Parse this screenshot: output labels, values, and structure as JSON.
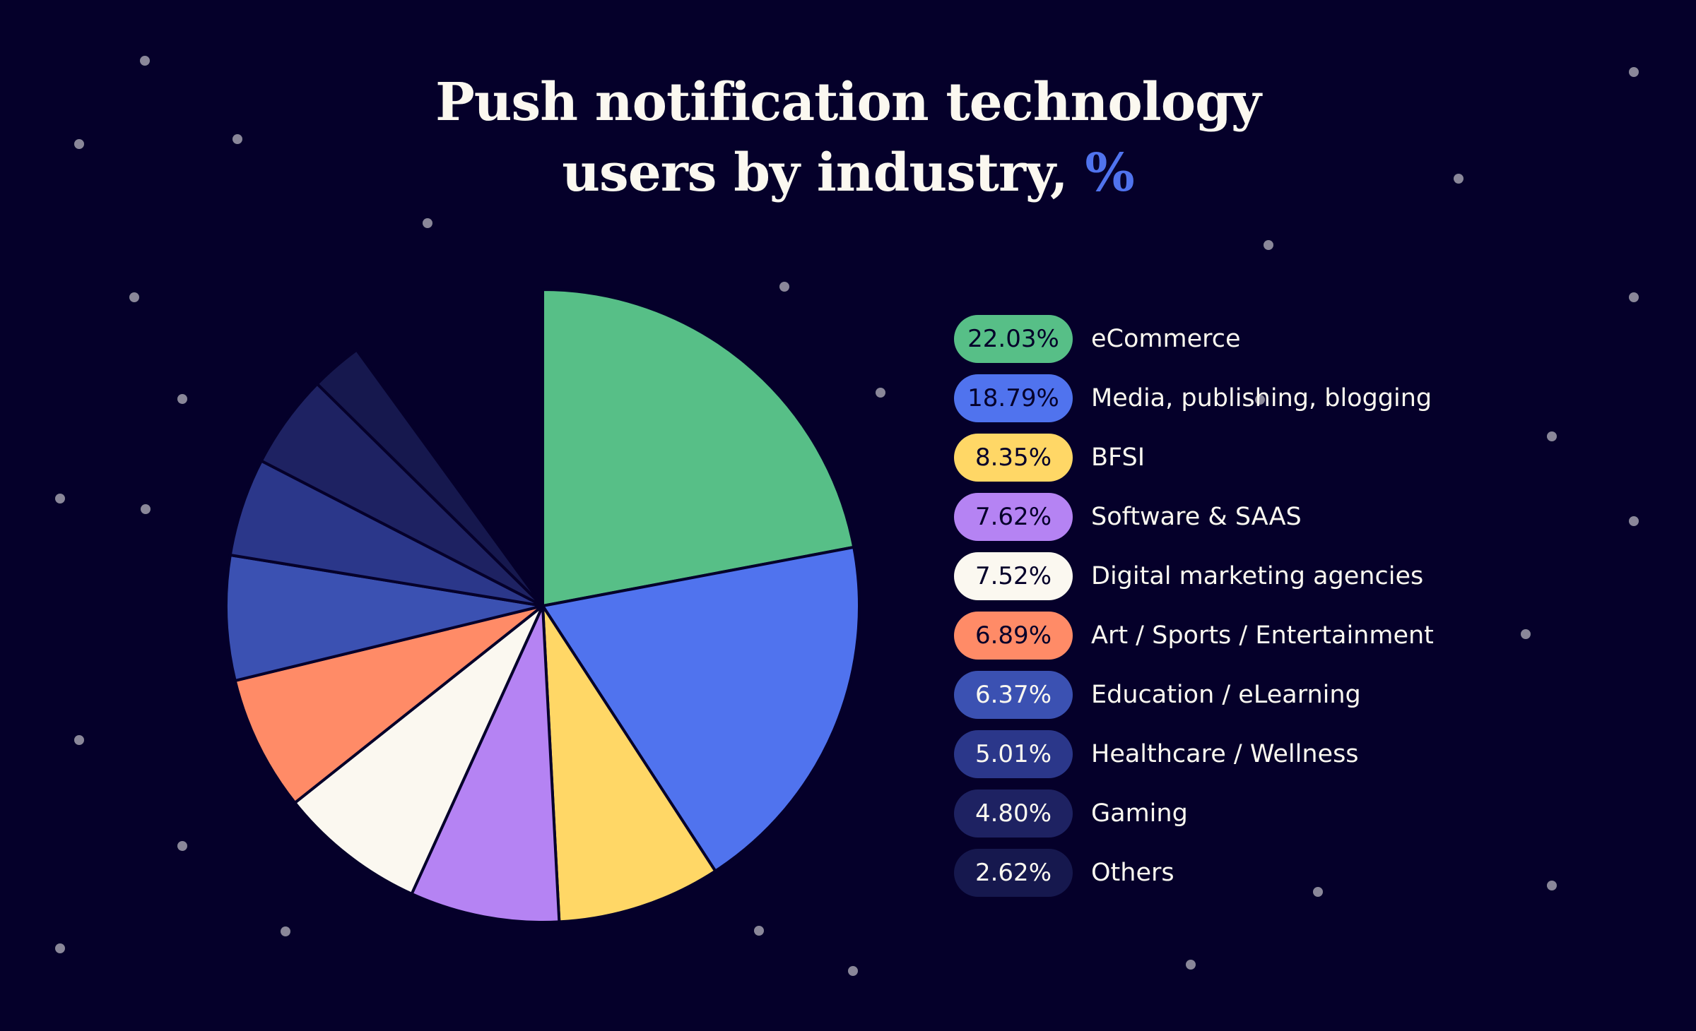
{
  "title": {
    "line1": "Push notification technology",
    "line2": "users by industry, ",
    "accent": "%"
  },
  "colors": {
    "background": "#05002a",
    "star": "#8a8799",
    "accent": "#5073ee"
  },
  "chart_data": {
    "type": "pie",
    "title": "Push notification technology users by industry, %",
    "unit": "%",
    "legend_position": "right",
    "slices": [
      {
        "label": "eCommerce",
        "value": 22.03,
        "display": "22.03%",
        "color": "#57bf87",
        "text_color": "#05002a"
      },
      {
        "label": "Media, publishing, blogging",
        "value": 18.79,
        "display": "18.79%",
        "color": "#5073ee",
        "text_color": "#05002a"
      },
      {
        "label": "BFSI",
        "value": 8.35,
        "display": "8.35%",
        "color": "#ffd766",
        "text_color": "#05002a"
      },
      {
        "label": "Software & SAAS",
        "value": 7.62,
        "display": "7.62%",
        "color": "#b583f3",
        "text_color": "#05002a"
      },
      {
        "label": "Digital marketing agencies",
        "value": 7.52,
        "display": "7.52%",
        "color": "#fbf8f0",
        "text_color": "#05002a"
      },
      {
        "label": "Art / Sports / Entertainment",
        "value": 6.89,
        "display": "6.89%",
        "color": "#ff8b67",
        "text_color": "#05002a"
      },
      {
        "label": "Education / eLearning",
        "value": 6.37,
        "display": "6.37%",
        "color": "#3b51b2",
        "text_color": "#fbf8f0"
      },
      {
        "label": "Healthcare / Wellness",
        "value": 5.01,
        "display": "5.01%",
        "color": "#2b378a",
        "text_color": "#fbf8f0"
      },
      {
        "label": "Gaming",
        "value": 4.8,
        "display": "4.80%",
        "color": "#1e2262",
        "text_color": "#fbf8f0"
      },
      {
        "label": "Others",
        "value": 2.62,
        "display": "2.62%",
        "color": "#16184e",
        "text_color": "#fbf8f0"
      }
    ]
  }
}
